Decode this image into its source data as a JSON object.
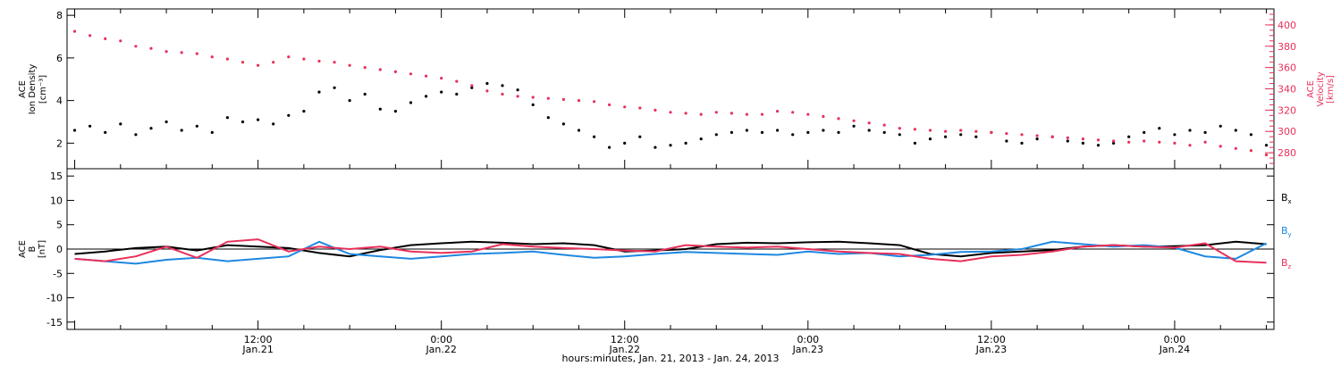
{
  "colors": {
    "black": "#000000",
    "red": "#e8305a",
    "blue": "#1e88e0"
  },
  "chart_data": [
    {
      "type": "scatter",
      "panel": "top",
      "ylabel_left": [
        "ACE",
        "Ion Density",
        "[cm⁻³]"
      ],
      "ylabel_right": [
        "ACE",
        "Velocity",
        "[km/s]"
      ],
      "ylim_left": [
        0.8,
        8.3
      ],
      "ylim_right": [
        265,
        415
      ],
      "left_ticks": [
        "2",
        "4",
        "6",
        "8"
      ],
      "right_ticks": [
        "280",
        "300",
        "320",
        "340",
        "360",
        "380",
        "400"
      ],
      "series": [
        {
          "axis": "left",
          "color": "#000000",
          "x": [
            0,
            1,
            2,
            3,
            4,
            5,
            6,
            7,
            8,
            9,
            10,
            11,
            12,
            13,
            14,
            15,
            16,
            17,
            18,
            19,
            20,
            21,
            22,
            23,
            24,
            25,
            26,
            27,
            28,
            29,
            30,
            31,
            32,
            33,
            34,
            35,
            36,
            37,
            38,
            39,
            40,
            41,
            42,
            43,
            44,
            45,
            46,
            47,
            48,
            49,
            50,
            51,
            52,
            53,
            54,
            55,
            56,
            57,
            58,
            59,
            60,
            61,
            62,
            63,
            64,
            65,
            66,
            67,
            68,
            69,
            70,
            71,
            72,
            73,
            74,
            75,
            76,
            77,
            78
          ],
          "y": [
            2.6,
            2.8,
            2.5,
            2.9,
            2.4,
            2.7,
            3.0,
            2.6,
            2.8,
            2.5,
            3.2,
            3.0,
            3.1,
            2.9,
            3.3,
            3.5,
            4.4,
            4.6,
            4.0,
            4.3,
            3.6,
            3.5,
            3.9,
            4.2,
            4.4,
            4.3,
            4.6,
            4.8,
            4.7,
            4.5,
            3.8,
            3.2,
            2.9,
            2.6,
            2.3,
            1.8,
            2.0,
            2.3,
            1.8,
            1.9,
            2.0,
            2.2,
            2.4,
            2.5,
            2.6,
            2.5,
            2.6,
            2.4,
            2.5,
            2.6,
            2.5,
            2.8,
            2.6,
            2.5,
            2.4,
            2.0,
            2.2,
            2.3,
            2.4,
            2.3,
            2.5,
            2.1,
            2.0,
            2.2,
            2.3,
            2.1,
            2.0,
            1.9,
            2.0,
            2.3,
            2.5,
            2.7,
            2.4,
            2.6,
            2.5,
            2.8,
            2.6,
            2.4,
            1.9
          ]
        },
        {
          "axis": "right",
          "color": "#e8305a",
          "x": [
            0,
            1,
            2,
            3,
            4,
            5,
            6,
            7,
            8,
            9,
            10,
            11,
            12,
            13,
            14,
            15,
            16,
            17,
            18,
            19,
            20,
            21,
            22,
            23,
            24,
            25,
            26,
            27,
            28,
            29,
            30,
            31,
            32,
            33,
            34,
            35,
            36,
            37,
            38,
            39,
            40,
            41,
            42,
            43,
            44,
            45,
            46,
            47,
            48,
            49,
            50,
            51,
            52,
            53,
            54,
            55,
            56,
            57,
            58,
            59,
            60,
            61,
            62,
            63,
            64,
            65,
            66,
            67,
            68,
            69,
            70,
            71,
            72,
            73,
            74,
            75,
            76,
            77,
            78
          ],
          "y": [
            394,
            390,
            387,
            385,
            380,
            378,
            375,
            374,
            373,
            370,
            368,
            365,
            362,
            365,
            370,
            368,
            366,
            365,
            362,
            360,
            358,
            356,
            354,
            352,
            350,
            347,
            343,
            338,
            335,
            333,
            332,
            331,
            330,
            329,
            328,
            325,
            323,
            322,
            320,
            318,
            317,
            316,
            318,
            317,
            316,
            316,
            319,
            318,
            316,
            314,
            312,
            310,
            308,
            306,
            303,
            302,
            301,
            300,
            301,
            300,
            299,
            298,
            297,
            296,
            295,
            294,
            293,
            292,
            291,
            290,
            291,
            290,
            289,
            287,
            290,
            286,
            284,
            282,
            278
          ]
        }
      ]
    },
    {
      "type": "line",
      "panel": "bottom",
      "ylabel": [
        "ACE",
        "B",
        "[nT]"
      ],
      "ylim": [
        -16.5,
        16.5
      ],
      "ticks": [
        "-15",
        "-10",
        "-5",
        "0",
        "5",
        "10",
        "15"
      ],
      "legend": [
        {
          "label": "B",
          "sub": "x",
          "color": "#000000"
        },
        {
          "label": "B",
          "sub": "y",
          "color": "#1e88e0"
        },
        {
          "label": "B",
          "sub": "z",
          "color": "#e8305a"
        }
      ],
      "series": [
        {
          "name": "Bx",
          "color": "#000000",
          "x": [
            0,
            2,
            4,
            6,
            8,
            10,
            12,
            14,
            16,
            18,
            20,
            22,
            24,
            26,
            28,
            30,
            32,
            34,
            36,
            38,
            40,
            42,
            44,
            46,
            48,
            50,
            52,
            54,
            56,
            58,
            60,
            62,
            64,
            66,
            68,
            70,
            72,
            74,
            76,
            78
          ],
          "y": [
            -1.0,
            -0.5,
            0.2,
            0.5,
            -0.3,
            0.8,
            0.5,
            0.2,
            -0.8,
            -1.5,
            -0.2,
            0.8,
            1.2,
            1.5,
            1.3,
            1.0,
            1.2,
            0.8,
            -0.5,
            -0.3,
            0.0,
            1.0,
            1.3,
            1.2,
            1.4,
            1.5,
            1.2,
            0.8,
            -1.0,
            -1.5,
            -0.8,
            -0.5,
            -0.2,
            0.5,
            0.8,
            0.5,
            0.6,
            0.8,
            1.5,
            1.0
          ]
        },
        {
          "name": "By",
          "color": "#1e88e0",
          "x": [
            0,
            2,
            4,
            6,
            8,
            10,
            12,
            14,
            16,
            18,
            20,
            22,
            24,
            26,
            28,
            30,
            32,
            34,
            36,
            38,
            40,
            42,
            44,
            46,
            48,
            50,
            52,
            54,
            56,
            58,
            60,
            62,
            64,
            66,
            68,
            70,
            72,
            74,
            76,
            78
          ],
          "y": [
            -2.0,
            -2.5,
            -3.0,
            -2.2,
            -1.8,
            -2.5,
            -2.0,
            -1.5,
            1.5,
            -1.0,
            -1.5,
            -2.0,
            -1.5,
            -1.0,
            -0.8,
            -0.5,
            -1.2,
            -1.8,
            -1.5,
            -1.0,
            -0.6,
            -0.8,
            -1.0,
            -1.2,
            -0.5,
            -1.0,
            -0.8,
            -1.5,
            -1.2,
            -0.6,
            -0.5,
            0.0,
            1.5,
            1.0,
            0.5,
            0.8,
            0.3,
            -1.5,
            -2.0,
            1.2
          ]
        },
        {
          "name": "Bz",
          "color": "#e8305a",
          "x": [
            0,
            2,
            4,
            6,
            8,
            10,
            12,
            14,
            16,
            18,
            20,
            22,
            24,
            26,
            28,
            30,
            32,
            34,
            36,
            38,
            40,
            42,
            44,
            46,
            48,
            50,
            52,
            54,
            56,
            58,
            60,
            62,
            64,
            66,
            68,
            70,
            72,
            74,
            76,
            78
          ],
          "y": [
            -2.0,
            -2.5,
            -1.5,
            0.5,
            -1.8,
            1.5,
            2.0,
            -0.5,
            0.5,
            0.0,
            0.5,
            -0.5,
            -0.8,
            -0.5,
            1.0,
            0.5,
            0.2,
            0.0,
            -0.3,
            -0.5,
            0.8,
            0.5,
            0.3,
            0.5,
            0.0,
            -0.5,
            -0.8,
            -1.0,
            -2.0,
            -2.5,
            -1.5,
            -1.2,
            -0.5,
            0.5,
            0.8,
            0.5,
            0.3,
            1.2,
            -2.5,
            -2.8
          ]
        }
      ]
    }
  ],
  "x_axis": {
    "ticks": [
      {
        "time": "12:00",
        "date": "Jan.21"
      },
      {
        "time": "0:00",
        "date": "Jan.22"
      },
      {
        "time": "12:00",
        "date": "Jan.22"
      },
      {
        "time": "0:00",
        "date": "Jan.23"
      },
      {
        "time": "12:00",
        "date": "Jan.23"
      },
      {
        "time": "0:00",
        "date": "Jan.24"
      }
    ],
    "tick_hours": [
      12,
      24,
      36,
      48,
      60,
      72
    ],
    "xlim_hours": [
      -0.5,
      78.5
    ],
    "xlabel": "hours:minutes, Jan. 21, 2013 - Jan. 24, 2013"
  }
}
